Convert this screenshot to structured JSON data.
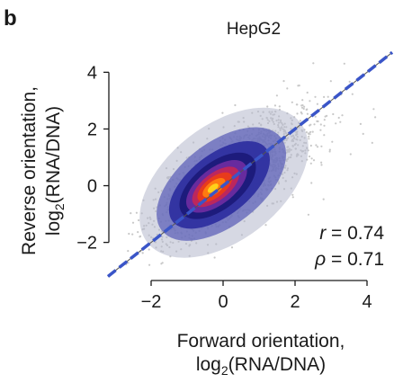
{
  "panel_label": "b",
  "chart_data": {
    "type": "scatter",
    "title": "HepG2",
    "xlabel": {
      "main": "Forward orientation,",
      "log": "log",
      "sub": "2",
      "rest": "(RNA/DNA)"
    },
    "ylabel": {
      "main": "Reverse orientation,",
      "log": "log",
      "sub": "2",
      "rest": "(RNA/DNA)"
    },
    "xlim": [
      -2.8,
      4.8
    ],
    "ylim": [
      -2.9,
      4.9
    ],
    "xticks": [
      -2,
      0,
      2,
      4
    ],
    "yticks": [
      -2,
      0,
      2,
      4
    ],
    "xtick_labels": [
      "−2",
      "0",
      "2",
      "4"
    ],
    "ytick_labels": [
      "−2",
      "0",
      "2",
      "4"
    ],
    "grid": false,
    "density_colors": [
      "#c8c8c8",
      "#b4b8cc",
      "#5e62b8",
      "#2b2c9e",
      "#1c1a7a",
      "#6b2ca0",
      "#c1275a",
      "#e83b1c",
      "#ff7a10",
      "#ffd11a"
    ],
    "density_center": [
      -0.3,
      -0.1
    ],
    "fit_line": {
      "x": [
        -3.2,
        4.7
      ],
      "y": [
        -3.2,
        4.7
      ],
      "color": "#3a55c8",
      "style": "dashed"
    },
    "diagonal": {
      "x": [
        -3.2,
        4.7
      ],
      "y": [
        -3.2,
        4.7
      ],
      "color": "#555555"
    },
    "stats": [
      {
        "symbol": "r",
        "text": " = 0.74"
      },
      {
        "symbol": "ρ",
        "text": " = 0.71"
      }
    ]
  }
}
